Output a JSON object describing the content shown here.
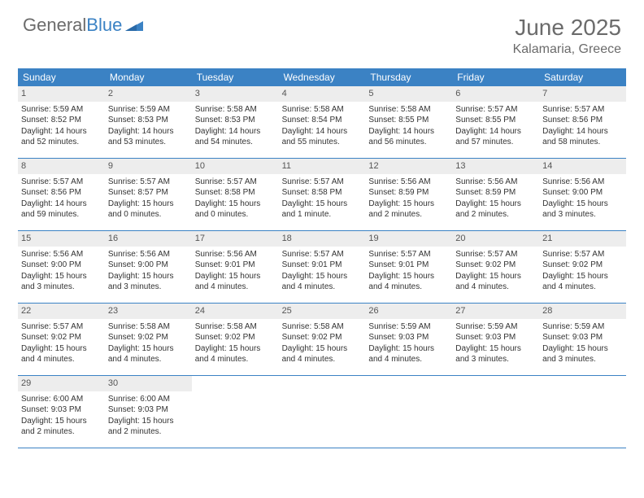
{
  "brand": {
    "part1": "General",
    "part2": "Blue"
  },
  "title": "June 2025",
  "location": "Kalamaria, Greece",
  "colors": {
    "header_bar": "#3b82c4",
    "daynum_bg": "#ededed",
    "text_muted": "#6b6b6b",
    "text_body": "#333333",
    "border": "#3b82c4"
  },
  "weekdays": [
    "Sunday",
    "Monday",
    "Tuesday",
    "Wednesday",
    "Thursday",
    "Friday",
    "Saturday"
  ],
  "weeks": [
    [
      {
        "n": "1",
        "sr": "Sunrise: 5:59 AM",
        "ss": "Sunset: 8:52 PM",
        "d1": "Daylight: 14 hours",
        "d2": "and 52 minutes."
      },
      {
        "n": "2",
        "sr": "Sunrise: 5:59 AM",
        "ss": "Sunset: 8:53 PM",
        "d1": "Daylight: 14 hours",
        "d2": "and 53 minutes."
      },
      {
        "n": "3",
        "sr": "Sunrise: 5:58 AM",
        "ss": "Sunset: 8:53 PM",
        "d1": "Daylight: 14 hours",
        "d2": "and 54 minutes."
      },
      {
        "n": "4",
        "sr": "Sunrise: 5:58 AM",
        "ss": "Sunset: 8:54 PM",
        "d1": "Daylight: 14 hours",
        "d2": "and 55 minutes."
      },
      {
        "n": "5",
        "sr": "Sunrise: 5:58 AM",
        "ss": "Sunset: 8:55 PM",
        "d1": "Daylight: 14 hours",
        "d2": "and 56 minutes."
      },
      {
        "n": "6",
        "sr": "Sunrise: 5:57 AM",
        "ss": "Sunset: 8:55 PM",
        "d1": "Daylight: 14 hours",
        "d2": "and 57 minutes."
      },
      {
        "n": "7",
        "sr": "Sunrise: 5:57 AM",
        "ss": "Sunset: 8:56 PM",
        "d1": "Daylight: 14 hours",
        "d2": "and 58 minutes."
      }
    ],
    [
      {
        "n": "8",
        "sr": "Sunrise: 5:57 AM",
        "ss": "Sunset: 8:56 PM",
        "d1": "Daylight: 14 hours",
        "d2": "and 59 minutes."
      },
      {
        "n": "9",
        "sr": "Sunrise: 5:57 AM",
        "ss": "Sunset: 8:57 PM",
        "d1": "Daylight: 15 hours",
        "d2": "and 0 minutes."
      },
      {
        "n": "10",
        "sr": "Sunrise: 5:57 AM",
        "ss": "Sunset: 8:58 PM",
        "d1": "Daylight: 15 hours",
        "d2": "and 0 minutes."
      },
      {
        "n": "11",
        "sr": "Sunrise: 5:57 AM",
        "ss": "Sunset: 8:58 PM",
        "d1": "Daylight: 15 hours",
        "d2": "and 1 minute."
      },
      {
        "n": "12",
        "sr": "Sunrise: 5:56 AM",
        "ss": "Sunset: 8:59 PM",
        "d1": "Daylight: 15 hours",
        "d2": "and 2 minutes."
      },
      {
        "n": "13",
        "sr": "Sunrise: 5:56 AM",
        "ss": "Sunset: 8:59 PM",
        "d1": "Daylight: 15 hours",
        "d2": "and 2 minutes."
      },
      {
        "n": "14",
        "sr": "Sunrise: 5:56 AM",
        "ss": "Sunset: 9:00 PM",
        "d1": "Daylight: 15 hours",
        "d2": "and 3 minutes."
      }
    ],
    [
      {
        "n": "15",
        "sr": "Sunrise: 5:56 AM",
        "ss": "Sunset: 9:00 PM",
        "d1": "Daylight: 15 hours",
        "d2": "and 3 minutes."
      },
      {
        "n": "16",
        "sr": "Sunrise: 5:56 AM",
        "ss": "Sunset: 9:00 PM",
        "d1": "Daylight: 15 hours",
        "d2": "and 3 minutes."
      },
      {
        "n": "17",
        "sr": "Sunrise: 5:56 AM",
        "ss": "Sunset: 9:01 PM",
        "d1": "Daylight: 15 hours",
        "d2": "and 4 minutes."
      },
      {
        "n": "18",
        "sr": "Sunrise: 5:57 AM",
        "ss": "Sunset: 9:01 PM",
        "d1": "Daylight: 15 hours",
        "d2": "and 4 minutes."
      },
      {
        "n": "19",
        "sr": "Sunrise: 5:57 AM",
        "ss": "Sunset: 9:01 PM",
        "d1": "Daylight: 15 hours",
        "d2": "and 4 minutes."
      },
      {
        "n": "20",
        "sr": "Sunrise: 5:57 AM",
        "ss": "Sunset: 9:02 PM",
        "d1": "Daylight: 15 hours",
        "d2": "and 4 minutes."
      },
      {
        "n": "21",
        "sr": "Sunrise: 5:57 AM",
        "ss": "Sunset: 9:02 PM",
        "d1": "Daylight: 15 hours",
        "d2": "and 4 minutes."
      }
    ],
    [
      {
        "n": "22",
        "sr": "Sunrise: 5:57 AM",
        "ss": "Sunset: 9:02 PM",
        "d1": "Daylight: 15 hours",
        "d2": "and 4 minutes."
      },
      {
        "n": "23",
        "sr": "Sunrise: 5:58 AM",
        "ss": "Sunset: 9:02 PM",
        "d1": "Daylight: 15 hours",
        "d2": "and 4 minutes."
      },
      {
        "n": "24",
        "sr": "Sunrise: 5:58 AM",
        "ss": "Sunset: 9:02 PM",
        "d1": "Daylight: 15 hours",
        "d2": "and 4 minutes."
      },
      {
        "n": "25",
        "sr": "Sunrise: 5:58 AM",
        "ss": "Sunset: 9:02 PM",
        "d1": "Daylight: 15 hours",
        "d2": "and 4 minutes."
      },
      {
        "n": "26",
        "sr": "Sunrise: 5:59 AM",
        "ss": "Sunset: 9:03 PM",
        "d1": "Daylight: 15 hours",
        "d2": "and 4 minutes."
      },
      {
        "n": "27",
        "sr": "Sunrise: 5:59 AM",
        "ss": "Sunset: 9:03 PM",
        "d1": "Daylight: 15 hours",
        "d2": "and 3 minutes."
      },
      {
        "n": "28",
        "sr": "Sunrise: 5:59 AM",
        "ss": "Sunset: 9:03 PM",
        "d1": "Daylight: 15 hours",
        "d2": "and 3 minutes."
      }
    ],
    [
      {
        "n": "29",
        "sr": "Sunrise: 6:00 AM",
        "ss": "Sunset: 9:03 PM",
        "d1": "Daylight: 15 hours",
        "d2": "and 2 minutes."
      },
      {
        "n": "30",
        "sr": "Sunrise: 6:00 AM",
        "ss": "Sunset: 9:03 PM",
        "d1": "Daylight: 15 hours",
        "d2": "and 2 minutes."
      },
      null,
      null,
      null,
      null,
      null
    ]
  ]
}
